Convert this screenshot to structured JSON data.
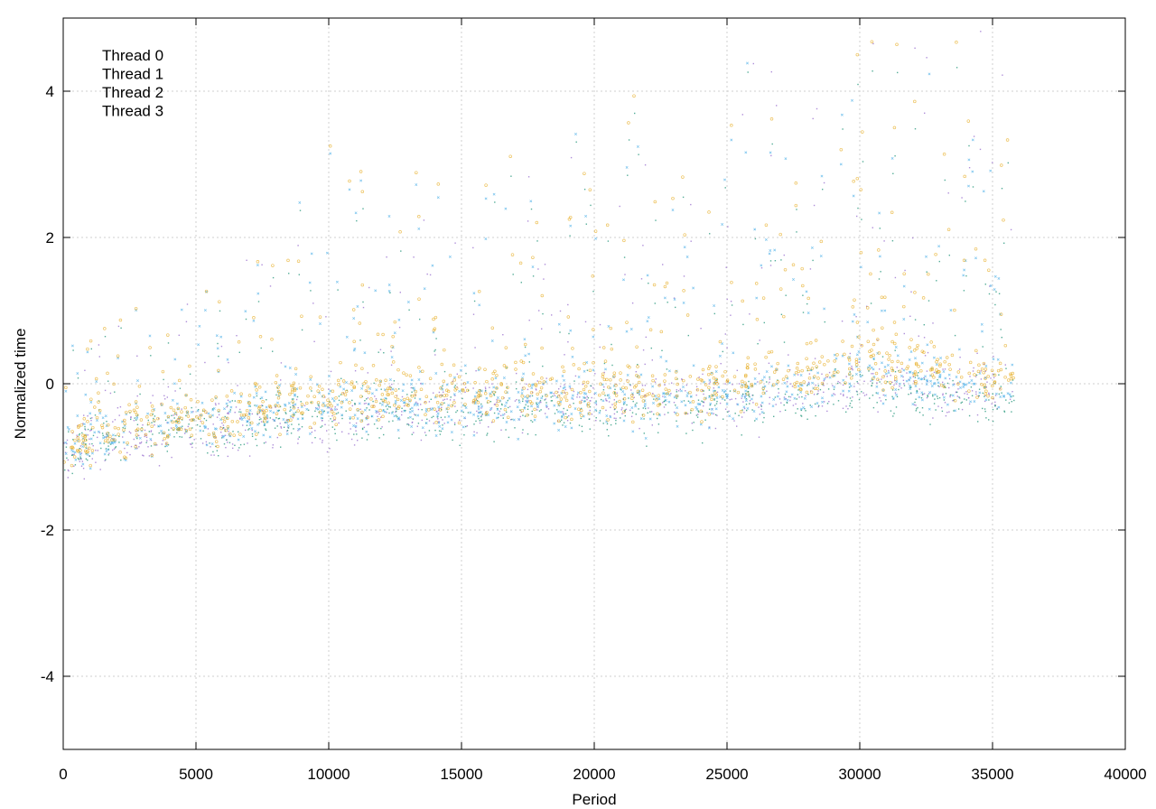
{
  "chart_data": {
    "type": "scatter",
    "title": "",
    "xlabel": "Period",
    "ylabel": "Normalized time",
    "xlim": [
      0,
      40000
    ],
    "ylim": [
      -5,
      5
    ],
    "xticks": [
      0,
      5000,
      10000,
      15000,
      20000,
      25000,
      30000,
      35000,
      40000
    ],
    "yticks": [
      -4,
      -2,
      0,
      2,
      4
    ],
    "grid": true,
    "legend_position": "top-left",
    "series": [
      {
        "name": "Thread 0",
        "color": "#9b72cf",
        "marker": "dot",
        "approx_range_x": [
          0,
          35800
        ],
        "trend": [
          [
            0,
            -0.9
          ],
          [
            5000,
            -0.6
          ],
          [
            10000,
            -0.5
          ],
          [
            15000,
            -0.3
          ],
          [
            20000,
            -0.2
          ],
          [
            25000,
            -0.2
          ],
          [
            30000,
            0.0
          ],
          [
            35800,
            -0.1
          ]
        ]
      },
      {
        "name": "Thread 1",
        "color": "#2a9a7e",
        "marker": "dot",
        "approx_range_x": [
          0,
          35800
        ],
        "trend": [
          [
            0,
            -0.9
          ],
          [
            5000,
            -0.6
          ],
          [
            10000,
            -0.4
          ],
          [
            15000,
            -0.4
          ],
          [
            20000,
            -0.3
          ],
          [
            25000,
            -0.3
          ],
          [
            30000,
            -0.1
          ],
          [
            35800,
            -0.2
          ]
        ]
      },
      {
        "name": "Thread 2",
        "color": "#56b4e9",
        "marker": "x",
        "approx_range_x": [
          0,
          35800
        ],
        "trend": [
          [
            0,
            -0.85
          ],
          [
            5000,
            -0.5
          ],
          [
            10000,
            -0.3
          ],
          [
            15000,
            -0.3
          ],
          [
            20000,
            -0.2
          ],
          [
            25000,
            -0.2
          ],
          [
            30000,
            0.1
          ],
          [
            35800,
            0.0
          ]
        ]
      },
      {
        "name": "Thread 3",
        "color": "#e6a817",
        "marker": "circle",
        "approx_range_x": [
          0,
          35800
        ],
        "trend": [
          [
            0,
            -0.8
          ],
          [
            5000,
            -0.5
          ],
          [
            10000,
            -0.2
          ],
          [
            15000,
            -0.1
          ],
          [
            20000,
            -0.1
          ],
          [
            25000,
            0.0
          ],
          [
            30000,
            0.3
          ],
          [
            35800,
            0.1
          ]
        ]
      }
    ]
  }
}
